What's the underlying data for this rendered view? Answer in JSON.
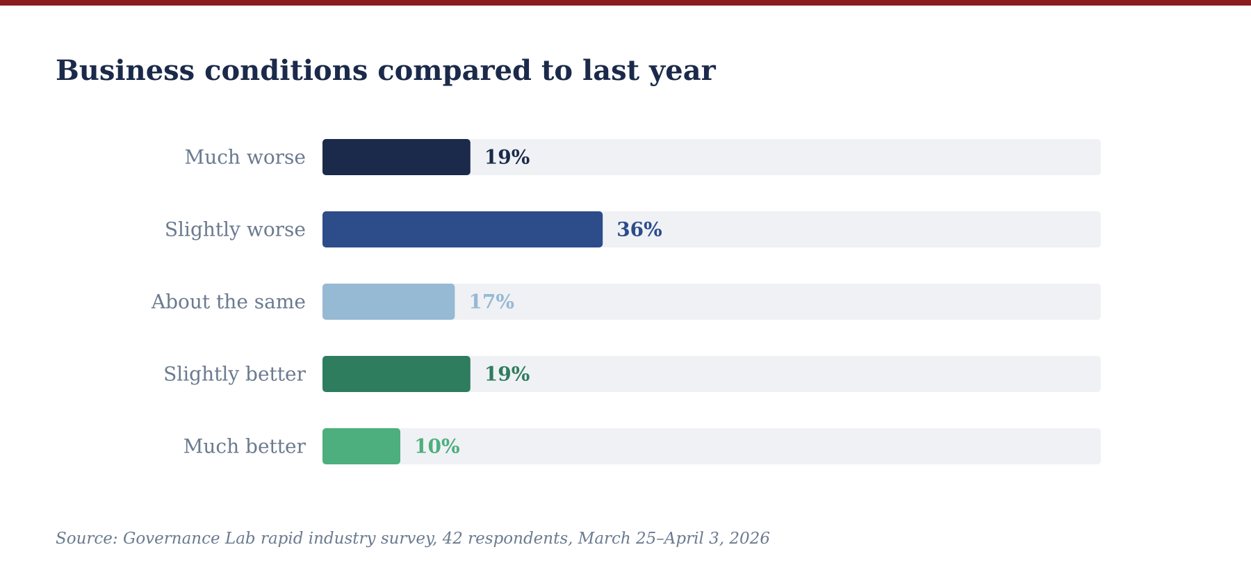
{
  "title": "Business conditions compared to last year",
  "source": "Source: Governance Lab rapid industry survey, 42 respondents, March 25–April 3, 2026",
  "colors": {
    "top_rule": "#8b1c1f",
    "track": "#f0f1f5",
    "category_text": "#6b7a8f",
    "title_text": "#1b2a4a"
  },
  "chart_data": {
    "type": "bar",
    "orientation": "horizontal",
    "title": "Business conditions compared to last year",
    "categories": [
      "Much worse",
      "Slightly worse",
      "About the same",
      "Slightly better",
      "Much better"
    ],
    "values": [
      19,
      36,
      17,
      19,
      10
    ],
    "value_labels": [
      "19%",
      "36%",
      "17%",
      "19%",
      "10%"
    ],
    "unit": "%",
    "xlim": [
      0,
      100
    ],
    "colors": [
      "#1b2a4a",
      "#2c4c8a",
      "#96b9d4",
      "#2e7d5e",
      "#4caf7d"
    ],
    "grid": false,
    "legend": "none"
  }
}
